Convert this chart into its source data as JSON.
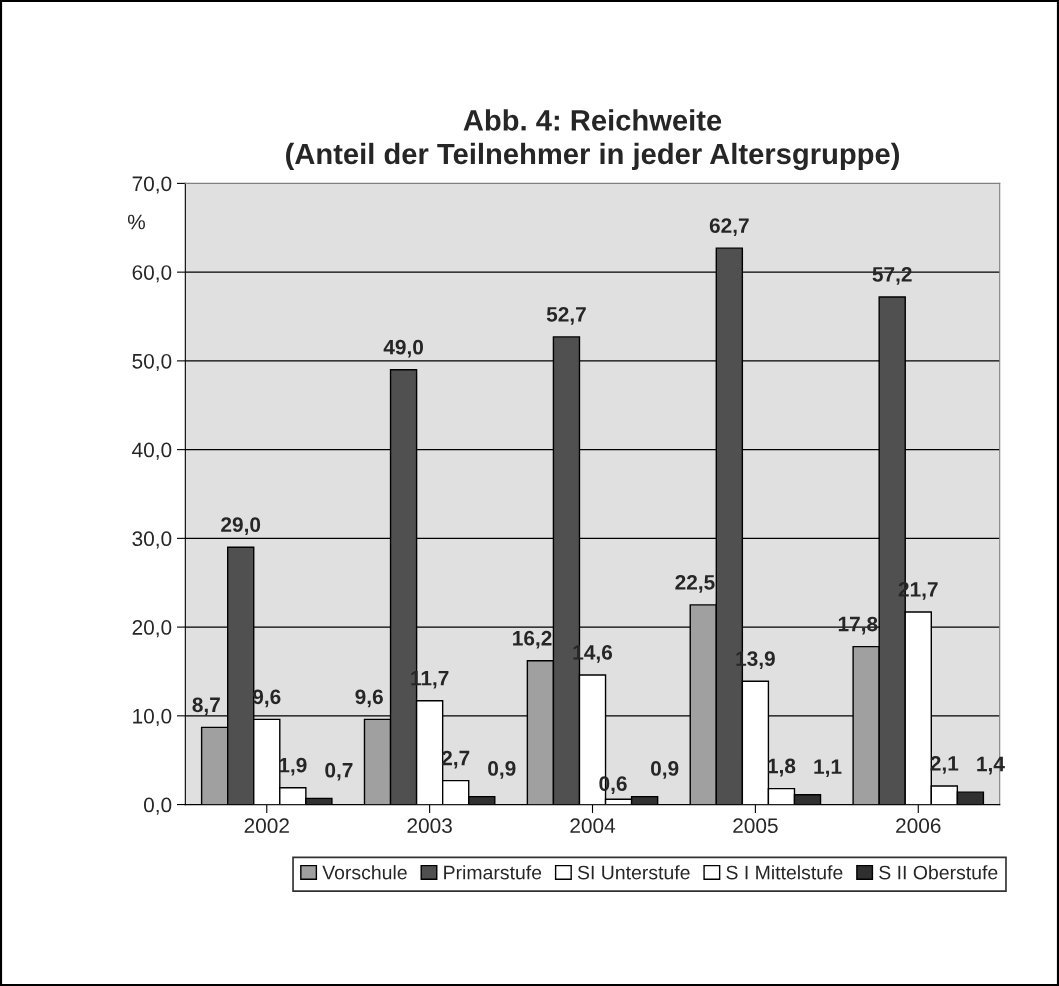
{
  "chart_data": {
    "type": "bar",
    "title": "Abb. 4: Reichweite\n(Anteil der Teilnehmer in jeder Altersgruppe)",
    "ylabel": "%",
    "categories": [
      "2002",
      "2003",
      "2004",
      "2005",
      "2006"
    ],
    "series": [
      {
        "name": "Vorschule",
        "color": "#a0a0a0",
        "values": [
          8.7,
          9.6,
          16.2,
          22.5,
          17.8
        ],
        "value_labels": [
          "8,7",
          "9,6",
          "16,2",
          "22,5",
          "17,8"
        ]
      },
      {
        "name": "Primarstufe",
        "color": "#505050",
        "values": [
          29.0,
          49.0,
          52.7,
          62.7,
          57.2
        ],
        "value_labels": [
          "29,0",
          "49,0",
          "52,7",
          "62,7",
          "57,2"
        ]
      },
      {
        "name": "SI Unterstufe",
        "color": "#ffffff",
        "values": [
          9.6,
          11.7,
          14.6,
          13.9,
          21.7
        ],
        "value_labels": [
          "9,6",
          "11,7",
          "14,6",
          "13,9",
          "21,7"
        ]
      },
      {
        "name": "S I Mittelstufe",
        "color": "#ffffff",
        "values": [
          1.9,
          2.7,
          0.6,
          1.8,
          2.1
        ],
        "value_labels": [
          "1,9",
          "2,7",
          "0,6",
          "1,8",
          "2,1"
        ]
      },
      {
        "name": "S II Oberstufe",
        "color": "#303030",
        "values": [
          0.7,
          0.9,
          0.9,
          1.1,
          1.4
        ],
        "value_labels": [
          "0,7",
          "0,9",
          "0,9",
          "1,1",
          "1,4"
        ]
      }
    ],
    "ylim": [
      0,
      70
    ],
    "yticks": [
      {
        "value": 0,
        "label": "0,0"
      },
      {
        "value": 10,
        "label": "10,0"
      },
      {
        "value": 20,
        "label": "20,0"
      },
      {
        "value": 30,
        "label": "30,0"
      },
      {
        "value": 40,
        "label": "40,0"
      },
      {
        "value": 50,
        "label": "50,0"
      },
      {
        "value": 60,
        "label": "60,0"
      },
      {
        "value": 70,
        "label": "70,0"
      }
    ],
    "grid": "y",
    "legend": "bottom"
  }
}
